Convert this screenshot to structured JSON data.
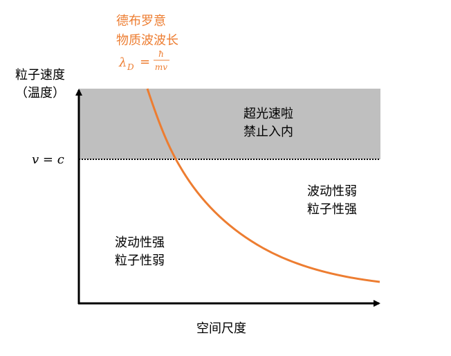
{
  "curve_label": {
    "lines": [
      "德布罗意",
      "物质波波长"
    ],
    "formula": {
      "symbol": "λ",
      "subscript": "D",
      "equals": "=",
      "numerator": "ħ",
      "denominator": "mv"
    }
  },
  "y_axis": {
    "lines": [
      "粒子速度",
      "（温度）"
    ]
  },
  "limit_label": "v = c",
  "forbidden_region": {
    "lines": [
      "超光速啦",
      "禁止入内"
    ]
  },
  "right_region": {
    "lines": [
      "波动性弱",
      "粒子性强"
    ]
  },
  "left_region": {
    "lines": [
      "波动性强",
      "粒子性弱"
    ]
  },
  "x_axis": {
    "label": "空间尺度"
  }
}
